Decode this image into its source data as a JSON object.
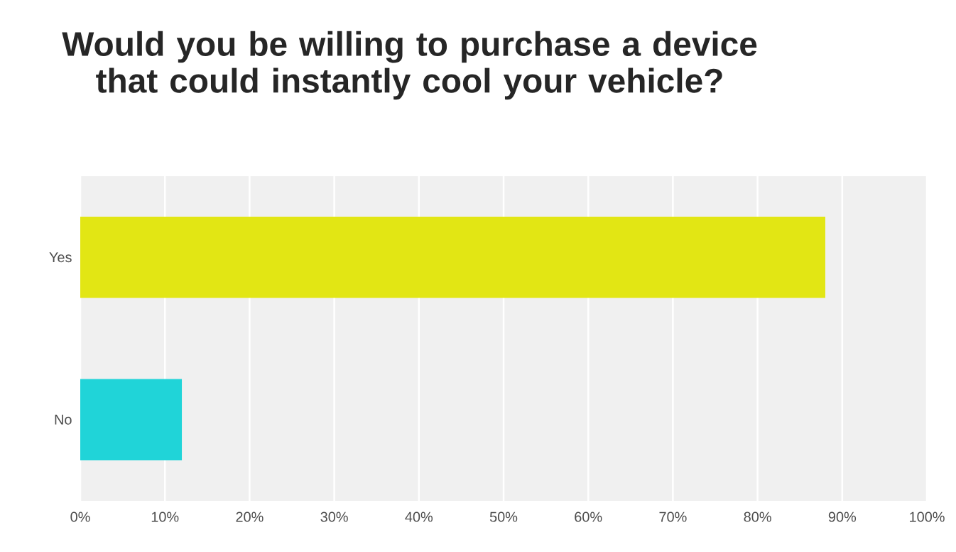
{
  "chart_data": {
    "type": "bar",
    "orientation": "horizontal",
    "title": "Would you be willing to purchase a device that could instantly cool your vehicle?",
    "categories": [
      "Yes",
      "No"
    ],
    "values": [
      88,
      12
    ],
    "colors": [
      "#e2e614",
      "#20d4d8"
    ],
    "xlim": [
      0,
      100
    ],
    "xticks": [
      {
        "value": 0,
        "label": "0%"
      },
      {
        "value": 10,
        "label": "10%"
      },
      {
        "value": 20,
        "label": "20%"
      },
      {
        "value": 30,
        "label": "30%"
      },
      {
        "value": 40,
        "label": "40%"
      },
      {
        "value": 50,
        "label": "50%"
      },
      {
        "value": 60,
        "label": "60%"
      },
      {
        "value": 70,
        "label": "70%"
      },
      {
        "value": 80,
        "label": "80%"
      },
      {
        "value": 90,
        "label": "90%"
      },
      {
        "value": 100,
        "label": "100%"
      }
    ],
    "grid": "x"
  }
}
